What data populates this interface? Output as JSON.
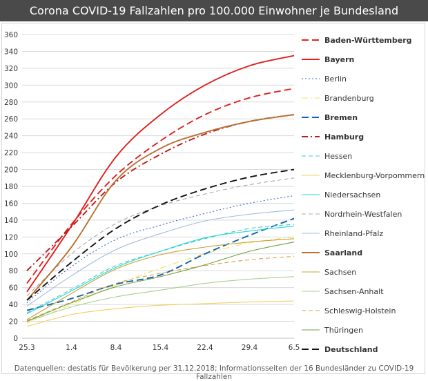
{
  "chart_data": {
    "type": "line",
    "title": "Corona COVID-19 Fallzahlen pro 100.000 Einwohner je Bundesland",
    "xlabel": "",
    "ylabel": "",
    "categories": [
      "25.3",
      "1.4",
      "8.4",
      "15.4",
      "22.4",
      "29.4",
      "6.5"
    ],
    "ylim": [
      0,
      360
    ],
    "yticks": [
      0,
      20,
      40,
      60,
      80,
      100,
      120,
      140,
      160,
      180,
      200,
      220,
      240,
      260,
      280,
      300,
      320,
      340,
      360
    ],
    "grid": "horizontal",
    "legend_position": "right",
    "series": [
      {
        "name": "Baden-Württemberg",
        "color": "#e02020",
        "dash": "long",
        "bold": true,
        "values": [
          65,
          135,
          193,
          234,
          265,
          285,
          296
        ]
      },
      {
        "name": "Bayern",
        "color": "#e02020",
        "dash": "solid",
        "bold": true,
        "values": [
          55,
          133,
          215,
          265,
          300,
          323,
          335
        ]
      },
      {
        "name": "Berlin",
        "color": "#3366cc",
        "dash": "dot",
        "bold": false,
        "values": [
          42,
          85,
          117,
          134,
          148,
          160,
          169
        ]
      },
      {
        "name": "Brandenburg",
        "color": "#f0e060",
        "dash": "dashdot",
        "bold": false,
        "values": [
          18,
          40,
          63,
          83,
          100,
          113,
          120
        ]
      },
      {
        "name": "Bremen",
        "color": "#1060b0",
        "dash": "long",
        "bold": true,
        "values": [
          33,
          47,
          64,
          75,
          100,
          122,
          142
        ]
      },
      {
        "name": "Hamburg",
        "color": "#c01818",
        "dash": "dashdot",
        "bold": true,
        "values": [
          80,
          132,
          185,
          218,
          242,
          257,
          265
        ]
      },
      {
        "name": "Hessen",
        "color": "#40c8c8",
        "dash": "dash",
        "bold": false,
        "values": [
          30,
          58,
          86,
          103,
          118,
          130,
          135
        ]
      },
      {
        "name": "Mecklenburg-Vorpommern",
        "color": "#f0d060",
        "dash": "solid",
        "bold": false,
        "values": [
          14,
          28,
          35,
          39,
          41,
          43,
          44
        ]
      },
      {
        "name": "Niedersachsen",
        "color": "#20d8d0",
        "dash": "solid",
        "bold": false,
        "values": [
          29,
          56,
          84,
          103,
          119,
          127,
          133
        ]
      },
      {
        "name": "Nordrhein-Westfalen",
        "color": "#a8a8a8",
        "dash": "dash",
        "bold": false,
        "values": [
          50,
          100,
          136,
          157,
          171,
          182,
          190
        ]
      },
      {
        "name": "Rheinland-Pfalz",
        "color": "#a0bcdc",
        "dash": "solid",
        "bold": false,
        "values": [
          38,
          74,
          105,
          124,
          139,
          147,
          152
        ]
      },
      {
        "name": "Saarland",
        "color": "#b87030",
        "dash": "solid",
        "bold": true,
        "values": [
          45,
          108,
          187,
          225,
          244,
          257,
          265
        ]
      },
      {
        "name": "Sachsen",
        "color": "#c8a030",
        "dash": "solid",
        "bold": false,
        "values": [
          22,
          53,
          82,
          99,
          108,
          114,
          118
        ]
      },
      {
        "name": "Sachsen-Anhalt",
        "color": "#a8d090",
        "dash": "solid",
        "bold": false,
        "values": [
          20,
          37,
          49,
          57,
          65,
          70,
          73
        ]
      },
      {
        "name": "Schleswig-Holstein",
        "color": "#e0a040",
        "dash": "dash",
        "bold": false,
        "values": [
          21,
          43,
          65,
          77,
          86,
          93,
          97
        ]
      },
      {
        "name": "Thüringen",
        "color": "#70a040",
        "dash": "solid",
        "bold": false,
        "values": [
          20,
          42,
          61,
          73,
          87,
          103,
          114
        ]
      },
      {
        "name": "Deutschland",
        "color": "#111111",
        "dash": "long",
        "bold": true,
        "values": [
          45,
          90,
          130,
          158,
          177,
          191,
          200
        ]
      }
    ],
    "source": "Datenquellen: destatis für Bevölkerung per 31.12.2018; Informationsseiten der 16 Bundesländer zu COVID-19 Fallzahlen"
  }
}
